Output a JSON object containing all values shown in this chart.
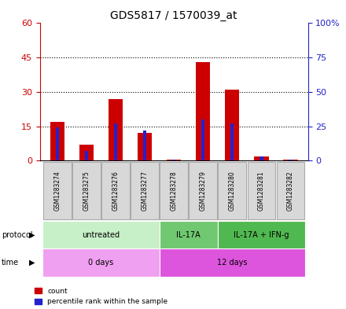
{
  "title": "GDS5817 / 1570039_at",
  "samples": [
    "GSM1283274",
    "GSM1283275",
    "GSM1283276",
    "GSM1283277",
    "GSM1283278",
    "GSM1283279",
    "GSM1283280",
    "GSM1283281",
    "GSM1283282"
  ],
  "count_values": [
    17,
    7,
    27,
    12,
    0.5,
    43,
    31,
    2,
    0.3
  ],
  "percentile_values": [
    24,
    7,
    27,
    22,
    1,
    30,
    27,
    3,
    1
  ],
  "ylim_left": [
    0,
    60
  ],
  "ylim_right": [
    0,
    100
  ],
  "yticks_left": [
    0,
    15,
    30,
    45,
    60
  ],
  "ytick_labels_left": [
    "0",
    "15",
    "30",
    "45",
    "60"
  ],
  "yticks_right": [
    0,
    25,
    50,
    75,
    100
  ],
  "ytick_labels_right": [
    "0",
    "25",
    "50",
    "75",
    "100%"
  ],
  "protocol_groups": [
    {
      "label": "untreated",
      "start": 0,
      "end": 4,
      "color": "#c8f0c8"
    },
    {
      "label": "IL-17A",
      "start": 4,
      "end": 6,
      "color": "#70c870"
    },
    {
      "label": "IL-17A + IFN-g",
      "start": 6,
      "end": 9,
      "color": "#50b850"
    }
  ],
  "time_groups": [
    {
      "label": "0 days",
      "start": 0,
      "end": 4,
      "color": "#f0a0f0"
    },
    {
      "label": "12 days",
      "start": 4,
      "end": 9,
      "color": "#dd55dd"
    }
  ],
  "bar_color_red": "#cc0000",
  "bar_color_blue": "#2222cc",
  "sample_label_bg": "#d8d8d8",
  "red_bar_width": 0.5,
  "blue_bar_width": 0.12,
  "grid_color": "#000000"
}
